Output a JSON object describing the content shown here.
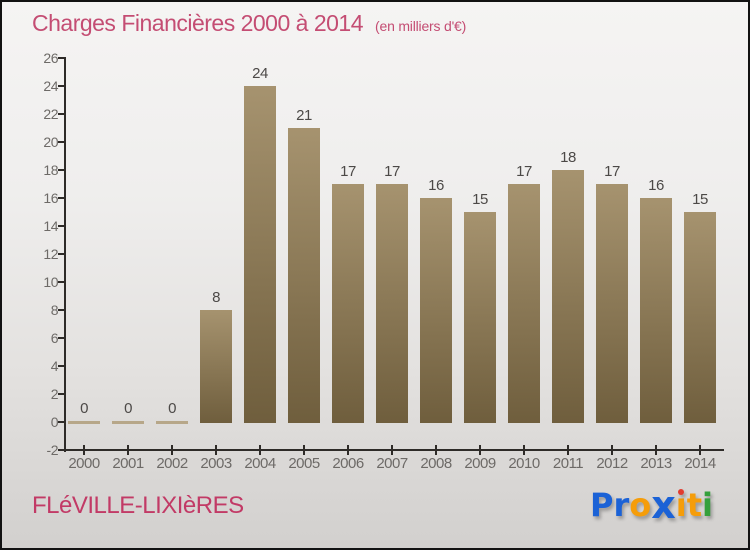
{
  "header": {
    "title": "Charges Financières 2000 à 2014",
    "subtitle": "(en milliers d'€)"
  },
  "chart_data": {
    "type": "bar",
    "title": "Charges Financières 2000 à 2014",
    "subtitle": "(en milliers d'€)",
    "categories": [
      "2000",
      "2001",
      "2002",
      "2003",
      "2004",
      "2005",
      "2006",
      "2007",
      "2008",
      "2009",
      "2010",
      "2011",
      "2012",
      "2013",
      "2014"
    ],
    "values": [
      0,
      0,
      0,
      8,
      24,
      21,
      17,
      17,
      16,
      15,
      17,
      18,
      17,
      16,
      15
    ],
    "xlabel": "",
    "ylabel": "",
    "ylim": [
      -2,
      26
    ],
    "ytick_step": 2,
    "grid": false,
    "legend": false,
    "bar_value_labels_shown": true
  },
  "footer": {
    "location": "FLéVILLE-LIXIèRES",
    "logo": {
      "text": "Proxiti",
      "letters": [
        {
          "char": "P",
          "color": "#1b62d6"
        },
        {
          "char": "r",
          "color": "#1b62d6"
        },
        {
          "char": "o",
          "color": "#f59d0a"
        },
        {
          "char": "x",
          "color": "#1b62d6",
          "big": true
        },
        {
          "char": "ı",
          "color": "#f59d0a",
          "dot_color": "#e23b2e"
        },
        {
          "char": "t",
          "color": "#f59d0a"
        },
        {
          "char": "i",
          "color": "#35a03c"
        }
      ]
    }
  },
  "theme": {
    "title_color": "#c44d73",
    "footer_color": "#c23a66",
    "axis_color": "#2e2b28",
    "tick_label_color": "#6d6a67",
    "value_label_color": "#4c4947",
    "bar_gradient_top": "#a6936f",
    "bar_gradient_bottom": "#6f5e3d",
    "zero_bar_color": "#b7a789",
    "background_top": "#f5f4f3",
    "background_bottom": "#d2d0ce"
  }
}
